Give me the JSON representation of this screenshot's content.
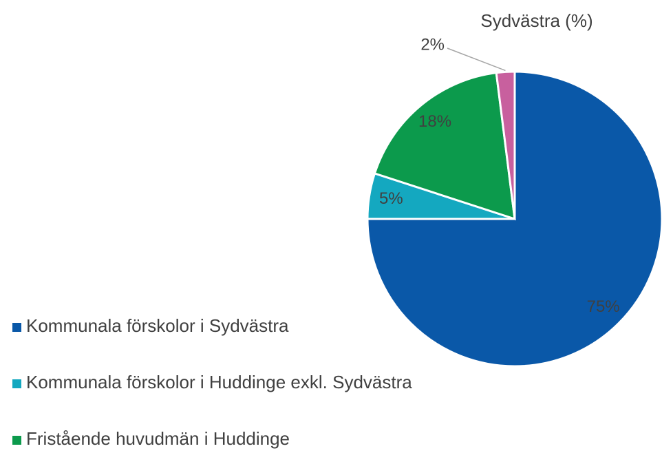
{
  "chart_data": {
    "type": "pie",
    "title": "Sydvästra (%)",
    "categories": [
      "Kommunala förskolor i Sydvästra",
      "Kommunala förskolor i Huddinge exkl. Sydvästra",
      "Fristående huvudmän i Huddinge",
      null
    ],
    "values": [
      75,
      5,
      18,
      2
    ],
    "value_labels": [
      "75%",
      "5%",
      "18%",
      "2%"
    ],
    "colors": [
      "#0a58a8",
      "#14a8c0",
      "#0c9a4c",
      "#c8609e"
    ]
  }
}
